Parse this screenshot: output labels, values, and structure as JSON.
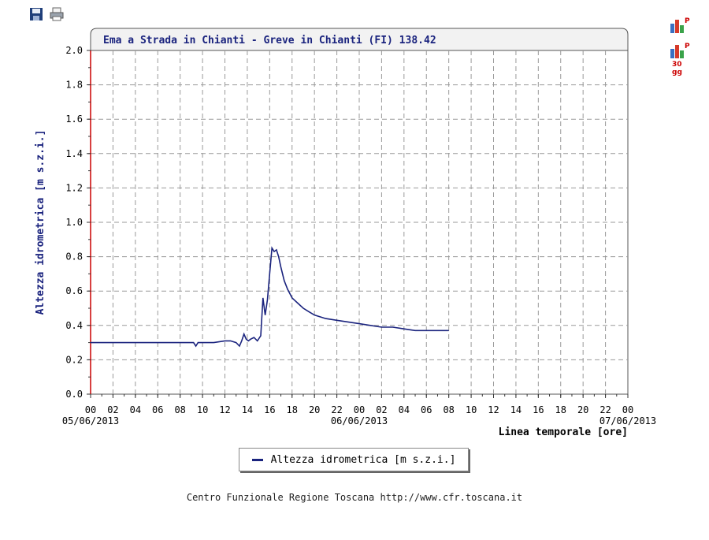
{
  "toolbar": {
    "save_icon": "floppy-disk-icon",
    "print_icon": "printer-icon"
  },
  "side_icons": {
    "p_icon": "bar-chart-p-icon",
    "p30_icon": "bar-chart-p-30gg-icon",
    "p_label": "P",
    "p30_label_1": "30",
    "p30_label_2": "gg"
  },
  "chart_data": {
    "type": "line",
    "title": "Ema a Strada in Chianti - Greve in Chianti (FI) 138.42",
    "ylabel": "Altezza idrometrica [m s.z.i.]",
    "xlabel": "Linea temporale [ore]",
    "ylim": [
      0,
      2.0
    ],
    "yticks": [
      "0.0",
      "0.2",
      "0.4",
      "0.6",
      "0.8",
      "1.0",
      "1.2",
      "1.4",
      "1.6",
      "1.8",
      "2.0"
    ],
    "xlim_hours": [
      0,
      48
    ],
    "xtick_labels": [
      "00",
      "02",
      "04",
      "06",
      "08",
      "10",
      "12",
      "14",
      "16",
      "18",
      "20",
      "22",
      "00",
      "02",
      "04",
      "06",
      "08",
      "10",
      "12",
      "14",
      "16",
      "18",
      "20",
      "22",
      "00"
    ],
    "date_labels": [
      "05/06/2013",
      "06/06/2013",
      "07/06/2013"
    ],
    "grid": true,
    "legend_position": "bottom-center",
    "colors": {
      "series": "#1a237e",
      "axis_left": "#cc0000",
      "grid": "#999999"
    },
    "series": [
      {
        "name": "Altezza idrometrica [m s.z.i.]",
        "x_hours": [
          0,
          9.2,
          9.4,
          9.6,
          10,
          11,
          12,
          12.5,
          13,
          13.3,
          13.5,
          13.7,
          13.9,
          14.1,
          14.3,
          14.6,
          14.9,
          15.2,
          15.4,
          15.6,
          15.8,
          16.0,
          16.2,
          16.4,
          16.6,
          16.8,
          17.0,
          17.3,
          17.6,
          18.0,
          18.5,
          19.0,
          19.5,
          20.0,
          21.0,
          22.0,
          23.0,
          24.0,
          25.0,
          26.0,
          27.0,
          28.0,
          29.0,
          30.0,
          31.0,
          32.0
        ],
        "values": [
          0.3,
          0.3,
          0.28,
          0.3,
          0.3,
          0.3,
          0.31,
          0.31,
          0.3,
          0.28,
          0.31,
          0.35,
          0.32,
          0.31,
          0.32,
          0.33,
          0.31,
          0.34,
          0.56,
          0.46,
          0.55,
          0.7,
          0.85,
          0.83,
          0.84,
          0.8,
          0.74,
          0.66,
          0.61,
          0.56,
          0.53,
          0.5,
          0.48,
          0.46,
          0.44,
          0.43,
          0.42,
          0.41,
          0.4,
          0.39,
          0.39,
          0.38,
          0.37,
          0.37,
          0.37,
          0.37
        ]
      }
    ]
  },
  "legend": {
    "label": "Altezza idrometrica [m s.z.i.]"
  },
  "footer": {
    "text": "Centro Funzionale Regione Toscana http://www.cfr.toscana.it"
  }
}
